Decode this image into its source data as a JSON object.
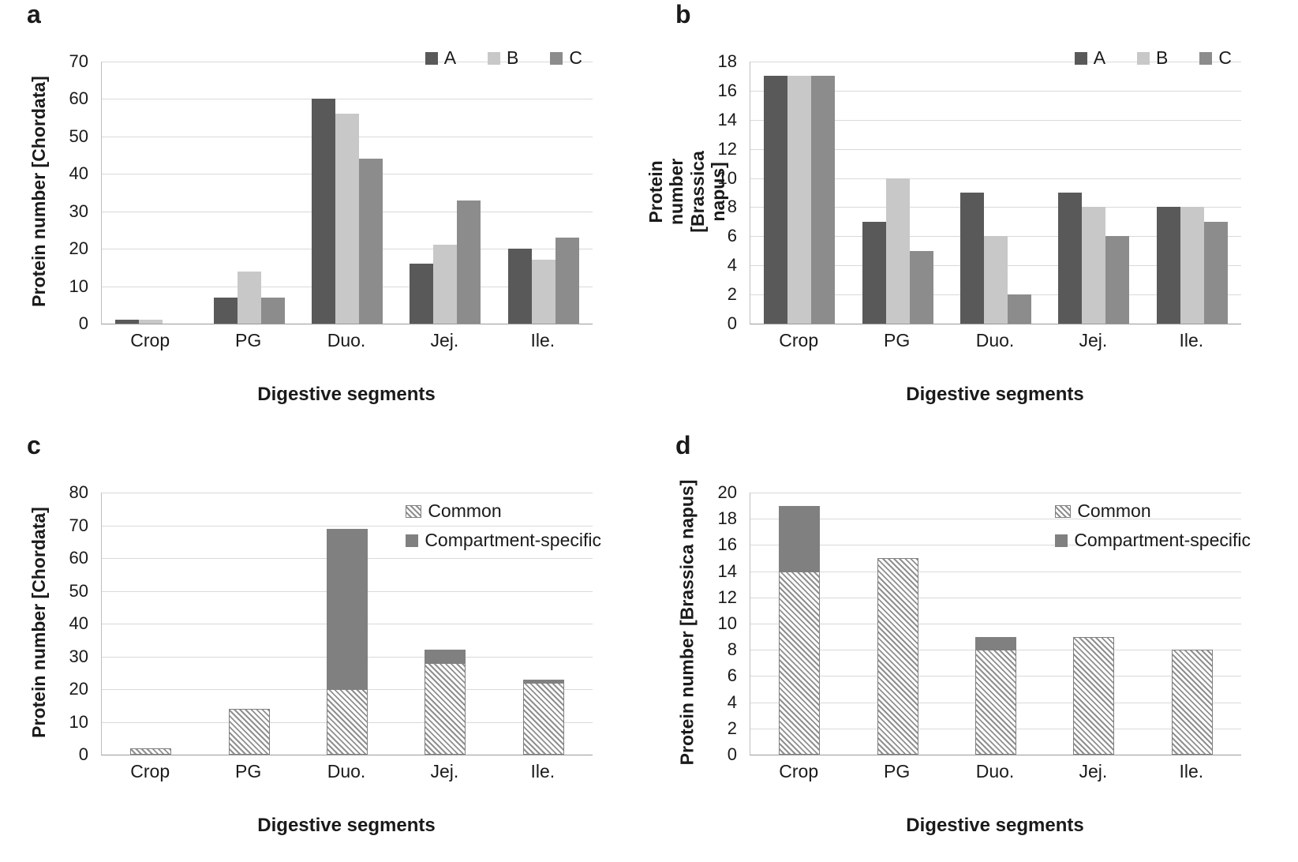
{
  "figure_title": "",
  "chart_data": [
    {
      "panel": "a",
      "type": "bar",
      "ylabel": "Protein number [Chordata]",
      "xlabel": "Digestive segments",
      "categories": [
        "Crop",
        "PG",
        "Duo.",
        "Jej.",
        "Ile."
      ],
      "ylim": [
        0,
        70
      ],
      "ytick_step": 10,
      "grid": true,
      "legend_position": "top-right",
      "series": [
        {
          "name": "A",
          "color": "#595959",
          "values": [
            1,
            7,
            60,
            16,
            20
          ]
        },
        {
          "name": "B",
          "color": "#c8c8c8",
          "values": [
            1,
            14,
            56,
            21,
            17
          ]
        },
        {
          "name": "C",
          "color": "#8c8c8c",
          "values": [
            0,
            7,
            44,
            33,
            23
          ]
        }
      ]
    },
    {
      "panel": "b",
      "type": "bar",
      "ylabel": "Protein number [Brassica napus]",
      "xlabel": "Digestive segments",
      "categories": [
        "Crop",
        "PG",
        "Duo.",
        "Jej.",
        "Ile."
      ],
      "ylim": [
        0,
        18
      ],
      "ytick_step": 2,
      "grid": true,
      "legend_position": "top-right",
      "series": [
        {
          "name": "A",
          "color": "#595959",
          "values": [
            17,
            7,
            9,
            9,
            8
          ]
        },
        {
          "name": "B",
          "color": "#c8c8c8",
          "values": [
            17,
            10,
            6,
            8,
            8
          ]
        },
        {
          "name": "C",
          "color": "#8c8c8c",
          "values": [
            17,
            5,
            2,
            6,
            7
          ]
        }
      ]
    },
    {
      "panel": "c",
      "type": "stacked-bar",
      "ylabel": "Protein number [Chordata]",
      "xlabel": "Digestive segments",
      "categories": [
        "Crop",
        "PG",
        "Duo.",
        "Jej.",
        "Ile."
      ],
      "ylim": [
        0,
        80
      ],
      "ytick_step": 10,
      "grid": true,
      "legend_position": "top-right",
      "series": [
        {
          "name": "Common",
          "style": "hatched",
          "color": "#8f8f8f",
          "values": [
            2,
            14,
            20,
            28,
            22
          ]
        },
        {
          "name": "Compartment-specific",
          "style": "solid",
          "color": "#808080",
          "values": [
            0,
            0,
            49,
            4,
            1
          ]
        }
      ]
    },
    {
      "panel": "d",
      "type": "stacked-bar",
      "ylabel": "Protein number [Brassica napus]",
      "xlabel": "Digestive segments",
      "categories": [
        "Crop",
        "PG",
        "Duo.",
        "Jej.",
        "Ile."
      ],
      "ylim": [
        0,
        20
      ],
      "ytick_step": 2,
      "grid": true,
      "legend_position": "top-right",
      "series": [
        {
          "name": "Common",
          "style": "hatched",
          "color": "#8f8f8f",
          "values": [
            14,
            15,
            8,
            9,
            8
          ]
        },
        {
          "name": "Compartment-specific",
          "style": "solid",
          "color": "#808080",
          "values": [
            5,
            0,
            1,
            0,
            0
          ]
        }
      ]
    }
  ]
}
